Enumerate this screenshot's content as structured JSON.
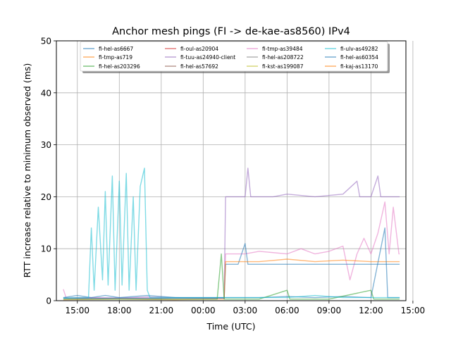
{
  "chart_data": {
    "type": "line",
    "title": "Anchor mesh pings (FI -> de-kae-as8560) IPv4",
    "xlabel": "Time (UTC)",
    "ylabel": "RTT increase relative to minimum observed (ms)",
    "x_ticks": [
      "15:00",
      "18:00",
      "21:00",
      "00:00",
      "03:00",
      "06:00",
      "09:00",
      "12:00",
      "15:00"
    ],
    "x_range_hours": [
      13.5,
      15.5
    ],
    "y_ticks": [
      "0",
      "10",
      "20",
      "30",
      "40",
      "50"
    ],
    "ylim": [
      0,
      50
    ],
    "grid": true,
    "legend_position": "top-center",
    "legend": [
      {
        "name": "fi-hel-as6667",
        "color": "#1f77b4"
      },
      {
        "name": "fi-tmp-as719",
        "color": "#ff7f0e"
      },
      {
        "name": "fi-hel-as203296",
        "color": "#2ca02c"
      },
      {
        "name": "fi-oul-as20904",
        "color": "#d62728"
      },
      {
        "name": "fi-tuu-as24940-client",
        "color": "#9467bd"
      },
      {
        "name": "fi-hel-as57692",
        "color": "#8c564b"
      },
      {
        "name": "fi-tmp-as39484",
        "color": "#e377c2"
      },
      {
        "name": "fi-hel-as208722",
        "color": "#7f7f7f"
      },
      {
        "name": "fi-kst-as199087",
        "color": "#bcbd22"
      },
      {
        "name": "fi-ulv-as49282",
        "color": "#17becf"
      },
      {
        "name": "fi-hel-as60354",
        "color": "#1f77b4"
      },
      {
        "name": "fi-kaj-as13170",
        "color": "#ff7f0e"
      }
    ],
    "series": [
      {
        "name": "fi-tuu-as24940-client",
        "color": "#9467bd",
        "points": [
          [
            14.0,
            0.5
          ],
          [
            16,
            0.6
          ],
          [
            18,
            0.5
          ],
          [
            20,
            0.7
          ],
          [
            22,
            0.6
          ],
          [
            24,
            0.5
          ],
          [
            25.5,
            0.5
          ],
          [
            25.6,
            20
          ],
          [
            27,
            20
          ],
          [
            27.2,
            25.5
          ],
          [
            27.4,
            20
          ],
          [
            29,
            20
          ],
          [
            30,
            20.5
          ],
          [
            32,
            20
          ],
          [
            34,
            20.5
          ],
          [
            35,
            23
          ],
          [
            35.2,
            20
          ],
          [
            36,
            20
          ],
          [
            36.5,
            24
          ],
          [
            36.7,
            20
          ],
          [
            38,
            20
          ],
          [
            38.05,
            20
          ]
        ]
      },
      {
        "name": "fi-tmp-as39484",
        "color": "#e377c2",
        "points": [
          [
            14.0,
            2.2
          ],
          [
            14.2,
            0.5
          ],
          [
            18,
            0.5
          ],
          [
            22,
            0.5
          ],
          [
            25.5,
            0.5
          ],
          [
            25.6,
            9
          ],
          [
            27,
            9
          ],
          [
            28,
            9.5
          ],
          [
            30,
            9
          ],
          [
            31,
            10
          ],
          [
            32,
            9
          ],
          [
            33,
            9.5
          ],
          [
            34,
            10.5
          ],
          [
            34.5,
            4
          ],
          [
            35,
            9
          ],
          [
            35.5,
            12
          ],
          [
            36,
            9
          ],
          [
            36.5,
            13
          ],
          [
            37,
            19
          ],
          [
            37.3,
            9
          ],
          [
            37.6,
            18
          ],
          [
            38,
            9
          ],
          [
            38.05,
            9
          ]
        ]
      },
      {
        "name": "fi-hel-as6667",
        "color": "#1f77b4",
        "points": [
          [
            14.0,
            0.5
          ],
          [
            16,
            0.4
          ],
          [
            18,
            0.5
          ],
          [
            20,
            0.4
          ],
          [
            22,
            0.5
          ],
          [
            24,
            0.5
          ],
          [
            25.5,
            0.5
          ],
          [
            25.6,
            7
          ],
          [
            26.5,
            7
          ],
          [
            27,
            11
          ],
          [
            27.2,
            7
          ],
          [
            29,
            7
          ],
          [
            31,
            7
          ],
          [
            32,
            7
          ],
          [
            34,
            7
          ],
          [
            35,
            7
          ],
          [
            36,
            7
          ],
          [
            37,
            7
          ],
          [
            38.05,
            7
          ]
        ]
      },
      {
        "name": "fi-kaj-as13170",
        "color": "#ff7f0e",
        "points": [
          [
            14.0,
            0.2
          ],
          [
            18,
            0.3
          ],
          [
            22,
            0.2
          ],
          [
            25.5,
            0.3
          ],
          [
            25.6,
            7.5
          ],
          [
            28,
            7.5
          ],
          [
            30,
            8
          ],
          [
            32,
            7.5
          ],
          [
            34,
            7.8
          ],
          [
            36,
            7.5
          ],
          [
            38.05,
            7.5
          ]
        ]
      },
      {
        "name": "fi-hel-as60354",
        "color": "#1f77b4",
        "points": [
          [
            14.0,
            0.6
          ],
          [
            15,
            1
          ],
          [
            16,
            0.6
          ],
          [
            17,
            1
          ],
          [
            18,
            0.6
          ],
          [
            20,
            1
          ],
          [
            22,
            0.6
          ],
          [
            24,
            0.6
          ],
          [
            26,
            0.6
          ],
          [
            28,
            0.6
          ],
          [
            30,
            0.8
          ],
          [
            32,
            0.6
          ],
          [
            34,
            0.8
          ],
          [
            36,
            0.6
          ],
          [
            37,
            14
          ],
          [
            37.2,
            0.6
          ],
          [
            38.05,
            0.6
          ]
        ]
      },
      {
        "name": "fi-hel-as203296",
        "color": "#2ca02c",
        "points": [
          [
            14.0,
            0.3
          ],
          [
            18,
            0.3
          ],
          [
            22,
            0.3
          ],
          [
            25,
            0.3
          ],
          [
            25.3,
            9
          ],
          [
            25.5,
            0.3
          ],
          [
            28,
            0.3
          ],
          [
            30,
            2
          ],
          [
            30.2,
            0.3
          ],
          [
            33,
            0.3
          ],
          [
            36,
            2
          ],
          [
            36.2,
            0.3
          ],
          [
            38.05,
            0.3
          ]
        ]
      },
      {
        "name": "fi-ulv-as49282",
        "color": "#17becf",
        "points": [
          [
            14.0,
            0.5
          ],
          [
            15,
            0.6
          ],
          [
            15.8,
            0.6
          ],
          [
            16,
            14
          ],
          [
            16.2,
            2
          ],
          [
            16.5,
            18
          ],
          [
            16.8,
            4
          ],
          [
            17,
            21
          ],
          [
            17.2,
            3
          ],
          [
            17.5,
            24
          ],
          [
            17.7,
            2
          ],
          [
            18,
            23
          ],
          [
            18.2,
            3
          ],
          [
            18.5,
            24.5
          ],
          [
            18.7,
            2
          ],
          [
            19,
            20
          ],
          [
            19.2,
            2
          ],
          [
            19.5,
            22
          ],
          [
            19.8,
            25.5
          ],
          [
            20,
            2
          ],
          [
            20.2,
            0.6
          ],
          [
            22,
            0.6
          ],
          [
            24,
            0.6
          ],
          [
            26,
            0.6
          ],
          [
            28,
            0.6
          ],
          [
            30,
            0.6
          ],
          [
            32,
            1
          ],
          [
            34,
            0.6
          ],
          [
            36,
            0.6
          ],
          [
            38.05,
            0.6
          ]
        ]
      }
    ]
  }
}
